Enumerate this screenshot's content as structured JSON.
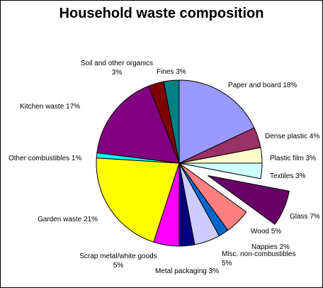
{
  "chart_data": {
    "type": "pie",
    "title": "Household waste composition",
    "unit": "%",
    "slices": [
      {
        "label": "Paper and board",
        "label_text": [
          "Paper and board 18%"
        ],
        "value": 18,
        "color": "#9999ff",
        "exploded": false
      },
      {
        "label": "Dense plastic",
        "label_text": [
          "Dense plastic 4%"
        ],
        "value": 4,
        "color": "#993366",
        "exploded": false
      },
      {
        "label": "Plastic film",
        "label_text": [
          "Plastic film 3%"
        ],
        "value": 3,
        "color": "#ffffcc",
        "exploded": false
      },
      {
        "label": "Textiles",
        "label_text": [
          "Textiles 3%"
        ],
        "value": 3,
        "color": "#ccffff",
        "exploded": false
      },
      {
        "label": "Glass",
        "label_text": [
          "Glass 7%"
        ],
        "value": 7,
        "color": "#660066",
        "exploded": true
      },
      {
        "label": "Wood",
        "label_text": [
          "Wood 5%"
        ],
        "value": 5,
        "color": "#ff8080",
        "exploded": false
      },
      {
        "label": "Nappies",
        "label_text": [
          "Nappies 2%"
        ],
        "value": 2,
        "color": "#0066cc",
        "exploded": false
      },
      {
        "label": "Misc. non-combustibles",
        "label_text": [
          "Misc. non-combustibles",
          "5%"
        ],
        "value": 5,
        "color": "#ccccff",
        "exploded": false
      },
      {
        "label": "Metal packaging",
        "label_text": [
          "Metal packaging 3%"
        ],
        "value": 3,
        "color": "#000080",
        "exploded": false
      },
      {
        "label": "Scrap metal/white goods",
        "label_text": [
          "Scrap metal/white goods",
          "5%"
        ],
        "value": 5,
        "color": "#ff00ff",
        "exploded": false
      },
      {
        "label": "Garden waste",
        "label_text": [
          "Garden waste 21%"
        ],
        "value": 21,
        "color": "#ffff00",
        "exploded": false
      },
      {
        "label": "Other combustibles",
        "label_text": [
          "Other combustibles 1%"
        ],
        "value": 1,
        "color": "#00ffff",
        "exploded": false
      },
      {
        "label": "Kitchen waste",
        "label_text": [
          "Kitchen waste 17%"
        ],
        "value": 17,
        "color": "#800080",
        "exploded": false
      },
      {
        "label": "Soil and other organics",
        "label_text": [
          "Soil and other organics",
          "3%"
        ],
        "value": 3,
        "color": "#800000",
        "exploded": false
      },
      {
        "label": "Fines",
        "label_text": [
          "Fines 3%"
        ],
        "value": 3,
        "color": "#008080",
        "exploded": false
      }
    ],
    "legend": "none",
    "data_labels": "outside"
  }
}
